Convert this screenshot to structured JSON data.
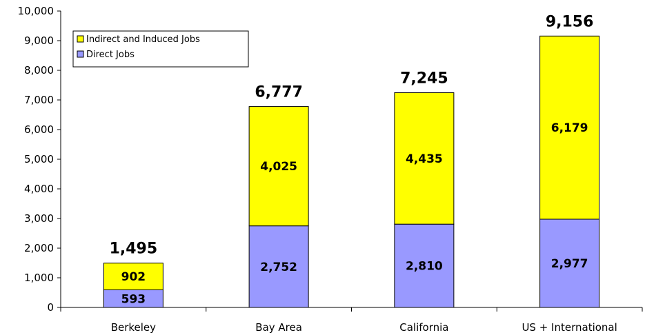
{
  "chart_data": {
    "type": "bar",
    "stacked": true,
    "categories": [
      "Berkeley",
      "Bay Area",
      "California",
      "US + International"
    ],
    "series": [
      {
        "name": "Direct Jobs",
        "values": [
          593,
          2752,
          2810,
          2977
        ],
        "color": "#9999ff"
      },
      {
        "name": "Indirect and Induced Jobs",
        "values": [
          902,
          4025,
          4435,
          6179
        ],
        "color": "#ffff00"
      }
    ],
    "totals": [
      1495,
      6777,
      7245,
      9156
    ],
    "ylim": [
      0,
      10000
    ],
    "yticks": [
      0,
      1000,
      2000,
      3000,
      4000,
      5000,
      6000,
      7000,
      8000,
      9000,
      10000
    ],
    "yticks_labels": [
      "0",
      "1,000",
      "2,000",
      "3,000",
      "4,000",
      "5,000",
      "6,000",
      "7,000",
      "8,000",
      "9,000",
      "10,000"
    ],
    "direct_labels": [
      "593",
      "2,752",
      "2,810",
      "2,977"
    ],
    "indirect_labels": [
      "902",
      "4,025",
      "4,435",
      "6,179"
    ],
    "total_labels": [
      "1,495",
      "6,777",
      "7,245",
      "9,156"
    ],
    "legend": {
      "position": "top-left",
      "entries": [
        {
          "label": "Indirect and Induced Jobs",
          "color": "#ffff00"
        },
        {
          "label": "Direct Jobs",
          "color": "#9999ff"
        }
      ]
    },
    "grid": false
  }
}
